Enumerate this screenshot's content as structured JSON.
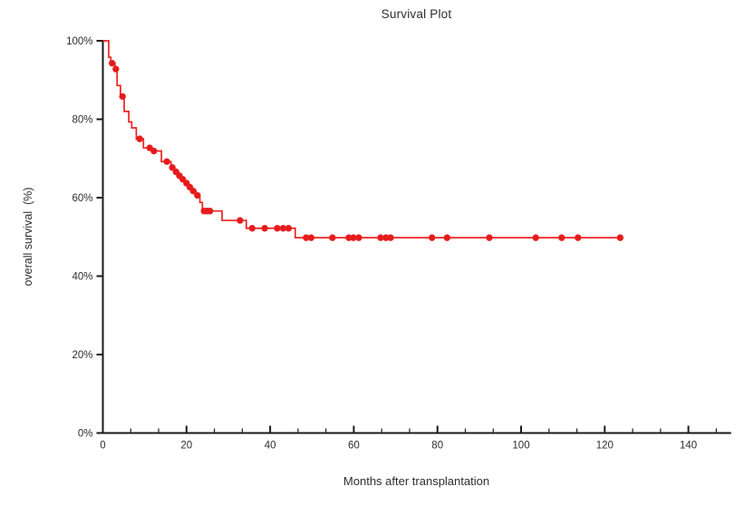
{
  "chart_data": {
    "type": "line",
    "subtype": "kaplan-meier-step",
    "title": "Survival Plot",
    "xlabel": "Months after transplantation",
    "ylabel": "overall survival  (%)",
    "xlim": [
      0,
      150
    ],
    "ylim": [
      0,
      100
    ],
    "grid": false,
    "legend": "none",
    "x_axis": {
      "tick_values": [
        0,
        20,
        40,
        60,
        80,
        100,
        120,
        140
      ],
      "tick_labels": [
        "0",
        "20",
        "40",
        "60",
        "80",
        "100",
        "120",
        "140"
      ],
      "minor_tick_step": 6.667
    },
    "y_axis": {
      "tick_values": [
        0,
        20,
        40,
        60,
        80,
        100
      ],
      "tick_labels": [
        "0%",
        "20%",
        "40%",
        "60%",
        "80%",
        "100%"
      ]
    },
    "series": [
      {
        "name": "overall survival",
        "style": "step-post",
        "end_time": 124.2,
        "steps": [
          [
            0,
            100
          ],
          [
            1.4,
            95.8
          ],
          [
            1.9,
            94.3
          ],
          [
            2.9,
            92.8
          ],
          [
            3.4,
            88.6
          ],
          [
            4.2,
            85.8
          ],
          [
            5.1,
            82.0
          ],
          [
            6.2,
            79.3
          ],
          [
            6.9,
            77.8
          ],
          [
            8.0,
            75.0
          ],
          [
            9.7,
            72.7
          ],
          [
            11.7,
            71.9
          ],
          [
            14.0,
            69.2
          ],
          [
            16.3,
            67.7
          ],
          [
            17.2,
            66.6
          ],
          [
            18.0,
            65.6
          ],
          [
            18.8,
            64.7
          ],
          [
            19.7,
            63.7
          ],
          [
            20.5,
            62.7
          ],
          [
            21.3,
            61.7
          ],
          [
            22.3,
            60.6
          ],
          [
            23.2,
            58.8
          ],
          [
            23.8,
            56.6
          ],
          [
            28.5,
            54.2
          ],
          [
            34.3,
            52.2
          ],
          [
            46.0,
            49.8
          ]
        ],
        "censor_marks": [
          [
            2.2,
            94.3
          ],
          [
            3.1,
            92.8
          ],
          [
            4.7,
            85.8
          ],
          [
            8.8,
            75.0
          ],
          [
            11.2,
            72.7
          ],
          [
            12.2,
            71.9
          ],
          [
            15.3,
            69.2
          ],
          [
            16.6,
            67.7
          ],
          [
            17.5,
            66.6
          ],
          [
            18.3,
            65.6
          ],
          [
            19.1,
            64.7
          ],
          [
            20.0,
            63.7
          ],
          [
            20.8,
            62.7
          ],
          [
            21.6,
            61.7
          ],
          [
            22.6,
            60.6
          ],
          [
            24.2,
            56.6
          ],
          [
            24.9,
            56.6
          ],
          [
            25.6,
            56.6
          ],
          [
            32.8,
            54.2
          ],
          [
            35.7,
            52.2
          ],
          [
            38.7,
            52.2
          ],
          [
            41.7,
            52.2
          ],
          [
            43.1,
            52.2
          ],
          [
            44.4,
            52.2
          ],
          [
            48.6,
            49.8
          ],
          [
            49.8,
            49.8
          ],
          [
            54.9,
            49.8
          ],
          [
            58.8,
            49.8
          ],
          [
            59.9,
            49.8
          ],
          [
            61.2,
            49.8
          ],
          [
            66.4,
            49.8
          ],
          [
            67.7,
            49.8
          ],
          [
            68.8,
            49.8
          ],
          [
            78.7,
            49.8
          ],
          [
            82.3,
            49.8
          ],
          [
            92.4,
            49.8
          ],
          [
            103.5,
            49.8
          ],
          [
            109.7,
            49.8
          ],
          [
            113.6,
            49.8
          ],
          [
            123.7,
            49.8
          ]
        ]
      }
    ],
    "colors": {
      "line": "#ee2222",
      "marker": "#e31b1b",
      "axis": "#1a1a1a",
      "text": "#2e2e2e",
      "background": "#ffffff"
    }
  }
}
